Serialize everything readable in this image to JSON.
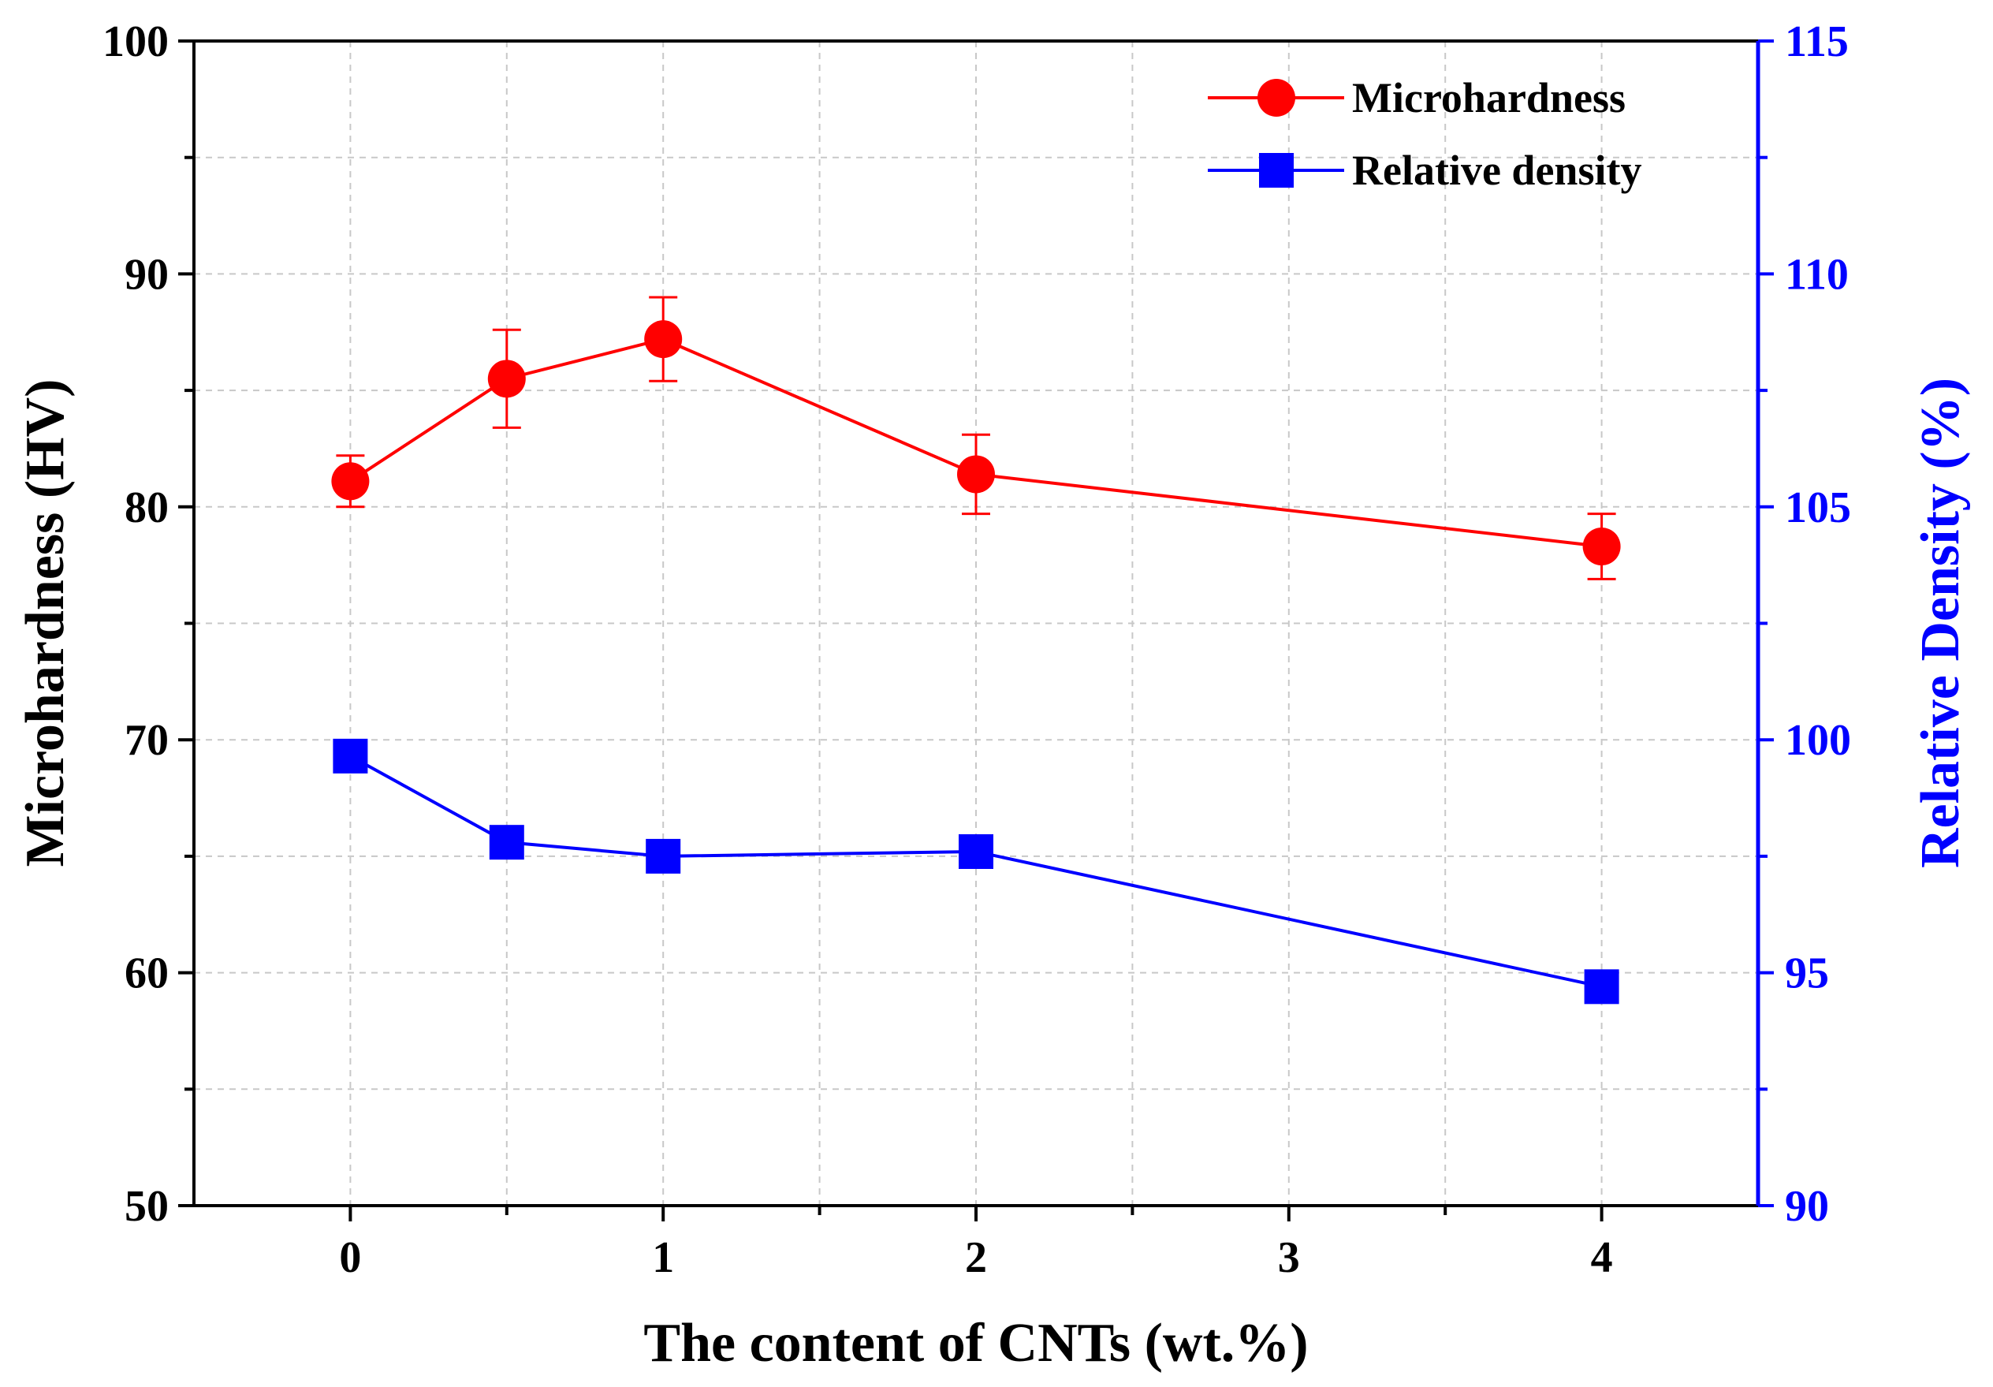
{
  "chart_data": {
    "type": "line",
    "xlabel": "The content of CNTs (wt.%)",
    "ylabel_left": "Microhardness (HV)",
    "ylabel_right": "Relative Density (%)",
    "xlim": [
      -0.5,
      4.5
    ],
    "ylim_left": [
      50,
      100
    ],
    "ylim_right": [
      90,
      115
    ],
    "x_ticks": [
      0,
      1,
      2,
      3,
      4
    ],
    "y_left_ticks": [
      50,
      60,
      70,
      80,
      90,
      100
    ],
    "y_right_ticks": [
      90,
      95,
      100,
      105,
      110,
      115
    ],
    "grid": true,
    "legend_position": "top-right",
    "series": [
      {
        "name": "Microhardness",
        "axis": "left",
        "marker": "circle",
        "color": "#ff0000",
        "x": [
          0,
          0.5,
          1,
          2,
          4
        ],
        "values": [
          81.1,
          85.5,
          87.2,
          81.4,
          78.3
        ],
        "errors": [
          1.1,
          2.1,
          1.8,
          1.7,
          1.4
        ]
      },
      {
        "name": "Relative density",
        "axis": "right",
        "marker": "square",
        "color": "#0000ff",
        "x": [
          0,
          0.5,
          1,
          2,
          4
        ],
        "values": [
          99.65,
          97.8,
          97.5,
          97.6,
          94.7
        ]
      }
    ]
  },
  "colors": {
    "left_axis": "#000000",
    "right_axis": "#0000ff",
    "grid": "#c8c8c8"
  }
}
